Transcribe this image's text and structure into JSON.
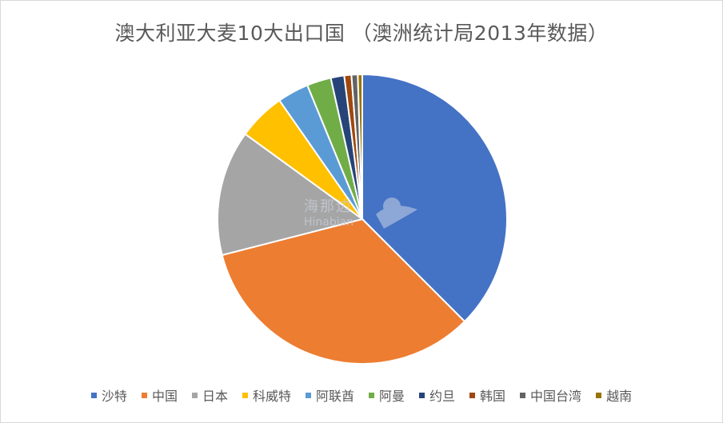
{
  "chart_data": {
    "type": "pie",
    "title": "澳大利亚大麦10大出口国 （澳洲统计局2013年数据）",
    "legend_position": "bottom",
    "start_angle_deg": 0,
    "direction": "clockwise",
    "slices": [
      {
        "label": "沙特",
        "value": 37.5,
        "color": "#4472C4"
      },
      {
        "label": "中国",
        "value": 33.5,
        "color": "#ED7D31"
      },
      {
        "label": "日本",
        "value": 14.0,
        "color": "#A5A5A5"
      },
      {
        "label": "科威特",
        "value": 5.3,
        "color": "#FFC000"
      },
      {
        "label": "阿联酋",
        "value": 3.5,
        "color": "#5B9BD5"
      },
      {
        "label": "阿曼",
        "value": 2.7,
        "color": "#70AD47"
      },
      {
        "label": "约旦",
        "value": 1.5,
        "color": "#264478"
      },
      {
        "label": "韩国",
        "value": 0.8,
        "color": "#9E480E"
      },
      {
        "label": "中国台湾",
        "value": 0.7,
        "color": "#636363"
      },
      {
        "label": "越南",
        "value": 0.5,
        "color": "#997300"
      }
    ]
  },
  "watermark": {
    "cn": "海那边",
    "en": "Hinabian"
  }
}
